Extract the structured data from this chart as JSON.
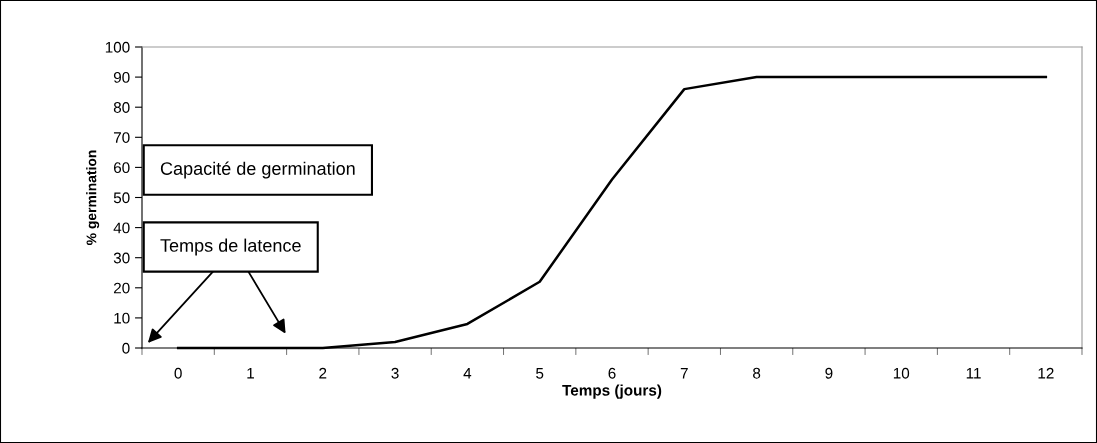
{
  "chart_data": {
    "type": "line",
    "xlabel": "Temps (jours)",
    "ylabel": "% germination",
    "categories": [
      "0",
      "1",
      "2",
      "3",
      "4",
      "5",
      "6",
      "7",
      "8",
      "9",
      "10",
      "11",
      "12"
    ],
    "series": [
      {
        "color": "#000000",
        "values": [
          0,
          0,
          0,
          2,
          8,
          22,
          56,
          86,
          90,
          90,
          90,
          90,
          90
        ]
      }
    ],
    "ylim": [
      0,
      100
    ],
    "yticks": [
      0,
      10,
      20,
      30,
      40,
      50,
      60,
      70,
      80,
      90,
      100
    ],
    "grid": false,
    "legend": false,
    "marker": "none",
    "line_style": "solid",
    "annotations": [
      "Capacité de germination",
      "Temps de latence"
    ]
  }
}
